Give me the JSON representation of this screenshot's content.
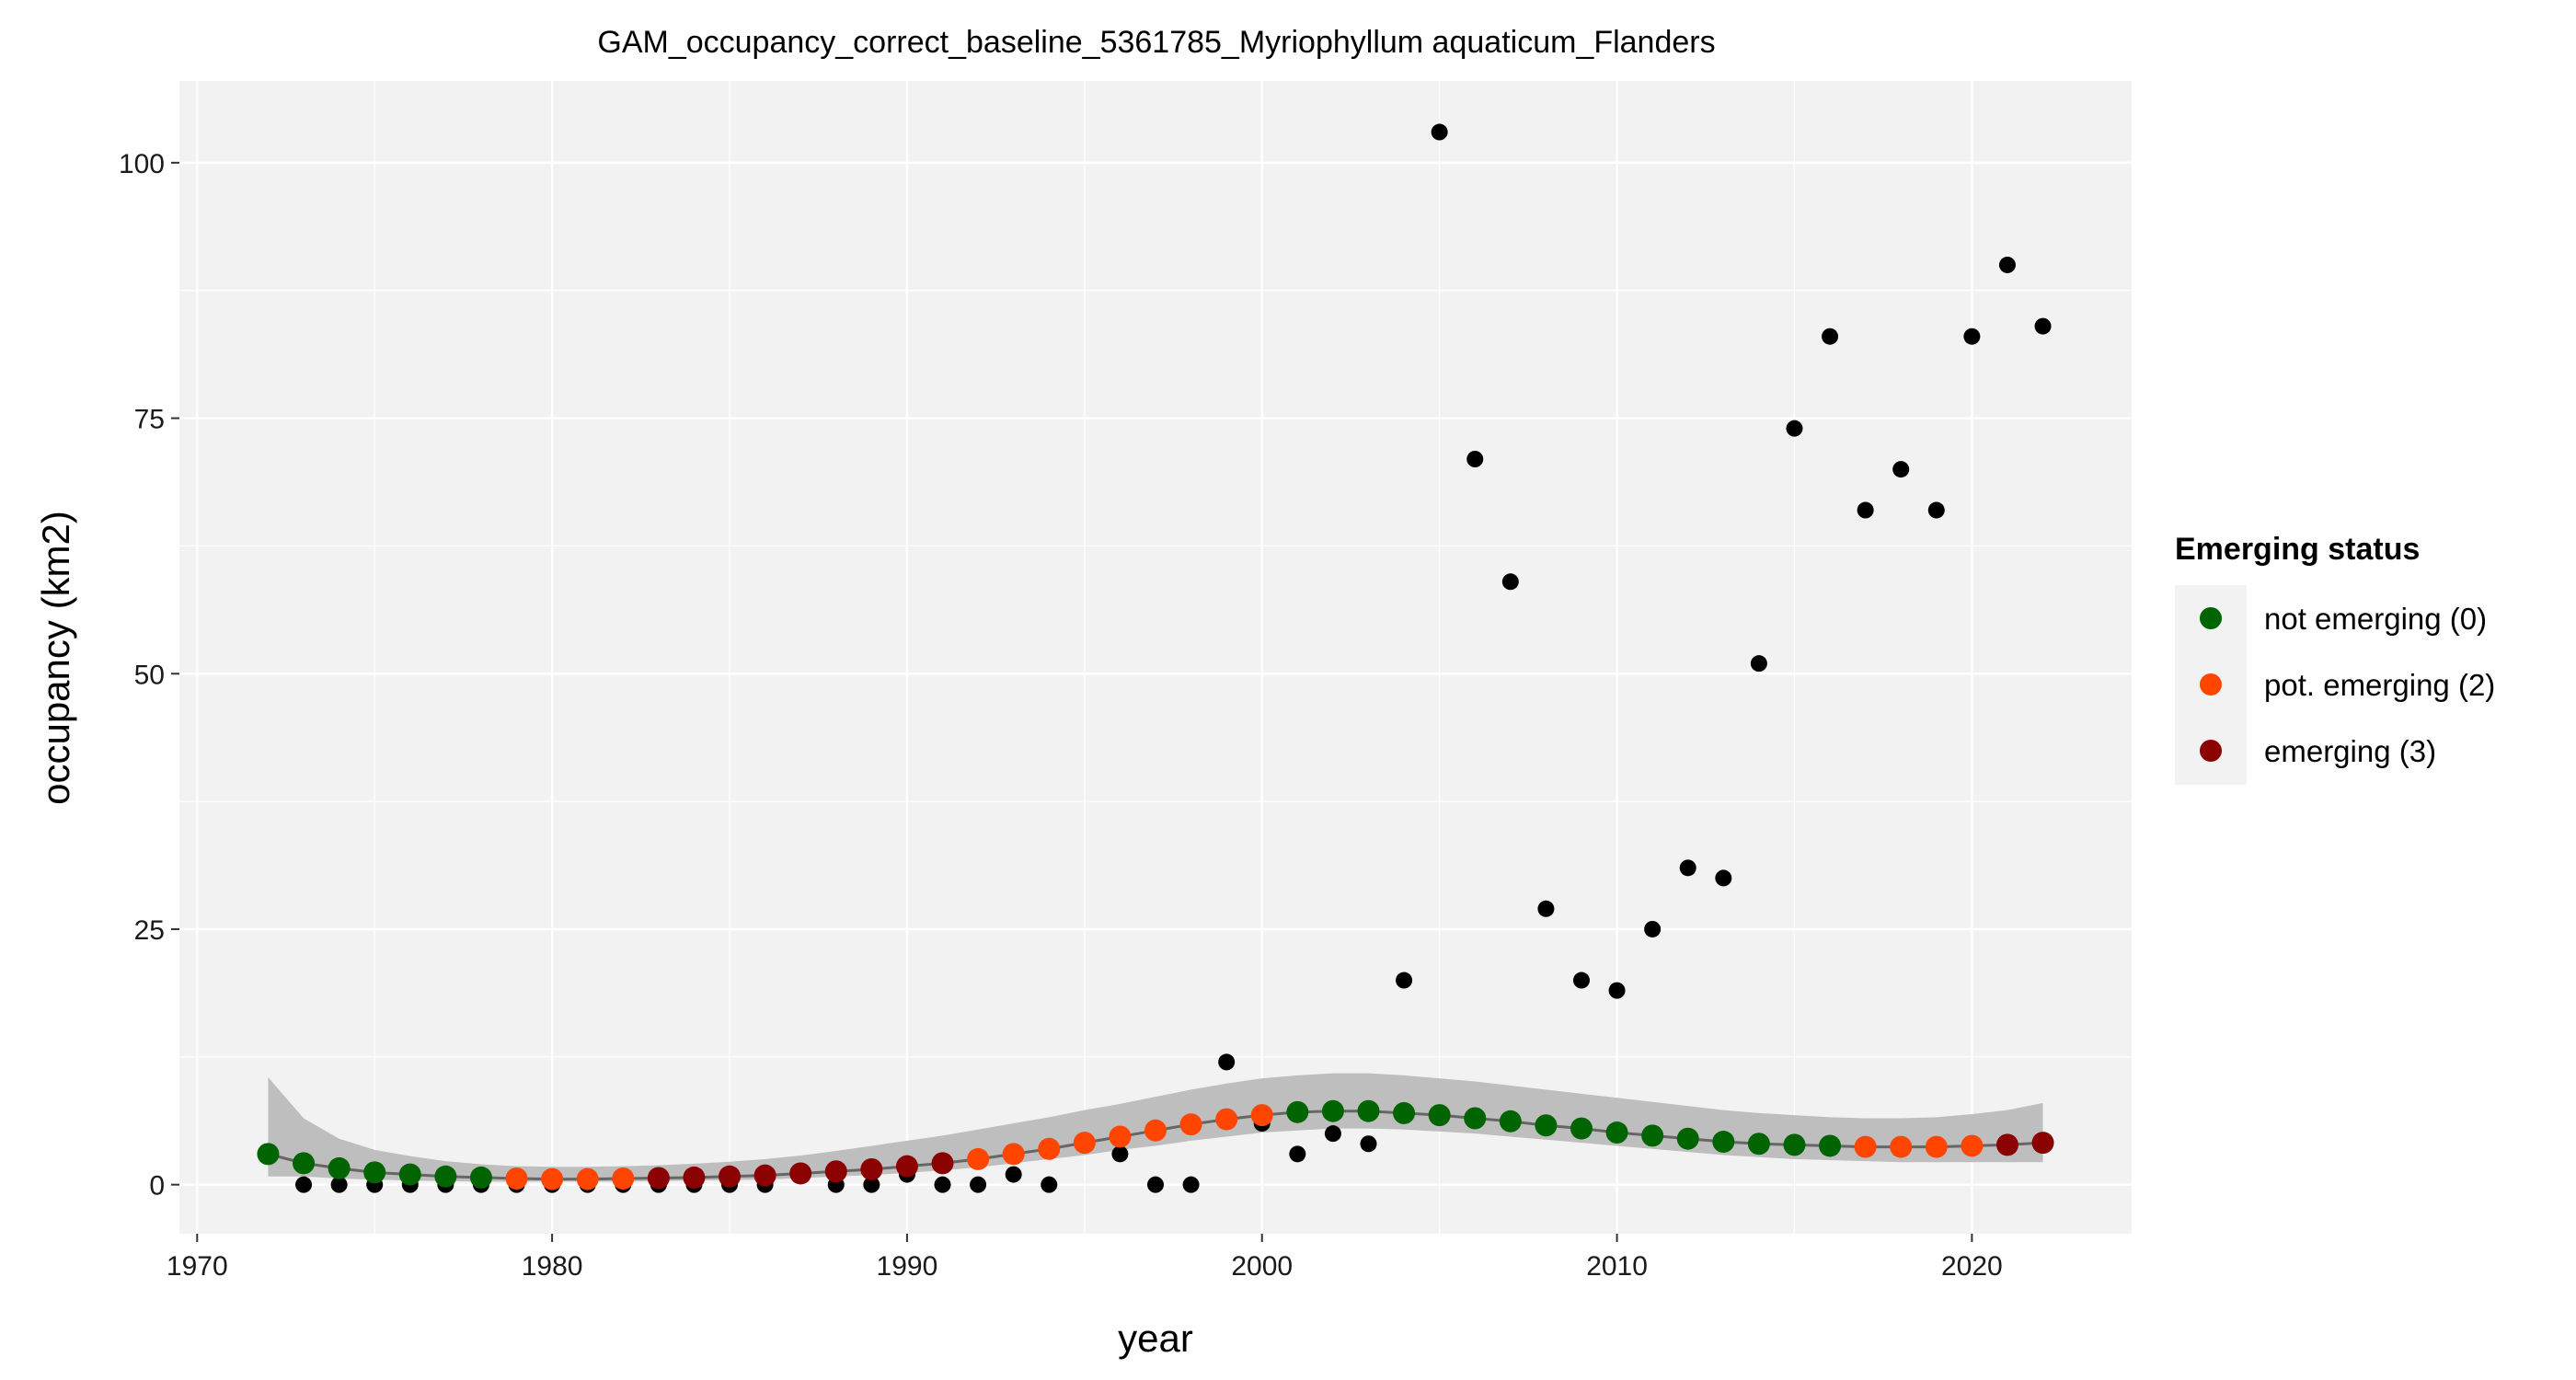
{
  "colors": {
    "panel_background": "#F2F2F2",
    "grid_line": "#FFFFFF",
    "ribbon": "#BEBEBE",
    "smooth_line": "#666666",
    "observed_point": "#000000",
    "not_emerging": "#006400",
    "pot_emerging": "#FF4500",
    "emerging": "#8B0000"
  },
  "chart_data": {
    "type": "scatter",
    "title": "GAM_occupancy_correct_baseline_5361785_Myriophyllum aquaticum_Flanders",
    "xlabel": "year",
    "ylabel": "occupancy (km2)",
    "xlim": [
      1969.5,
      2024.5
    ],
    "ylim": [
      -4.8,
      108
    ],
    "x_ticks": [
      1970,
      1980,
      1990,
      2000,
      2010,
      2020
    ],
    "x_tick_labels": [
      "1970",
      "1980",
      "1990",
      "2000",
      "2010",
      "2020"
    ],
    "y_ticks": [
      0,
      25,
      50,
      75,
      100
    ],
    "y_tick_labels": [
      "0",
      "25",
      "50",
      "75",
      "100"
    ],
    "grid": true,
    "legend": {
      "title": "Emerging status",
      "placement": "right",
      "entries": [
        {
          "label": "not emerging (0)",
          "color": "#006400"
        },
        {
          "label": "pot. emerging (2)",
          "color": "#FF4500"
        },
        {
          "label": "emerging (3)",
          "color": "#8B0000"
        }
      ]
    },
    "observed": {
      "x": [
        1973,
        1974,
        1975,
        1976,
        1977,
        1978,
        1979,
        1980,
        1981,
        1982,
        1983,
        1984,
        1985,
        1986,
        1987,
        1988,
        1989,
        1990,
        1991,
        1992,
        1993,
        1994,
        1996,
        1997,
        1998,
        1999,
        2000,
        2001,
        2002,
        2003,
        2004,
        2005,
        2006,
        2007,
        2008,
        2009,
        2010,
        2011,
        2012,
        2013,
        2014,
        2015,
        2016,
        2017,
        2018,
        2019,
        2020,
        2021,
        2022
      ],
      "y": [
        0,
        0,
        0,
        0,
        0,
        0,
        0,
        0,
        0,
        0,
        0,
        0,
        0,
        0,
        1,
        0,
        0,
        1,
        0,
        0,
        1,
        0,
        3,
        0,
        0,
        12,
        6,
        3,
        5,
        4,
        20,
        103,
        71,
        59,
        27,
        20,
        19,
        25,
        31,
        30,
        51,
        74,
        83,
        66,
        70,
        66,
        83,
        90,
        84
      ]
    },
    "fitted": {
      "x": [
        1972,
        1973,
        1974,
        1975,
        1976,
        1977,
        1978,
        1979,
        1980,
        1981,
        1982,
        1983,
        1984,
        1985,
        1986,
        1987,
        1988,
        1989,
        1990,
        1991,
        1992,
        1993,
        1994,
        1995,
        1996,
        1997,
        1998,
        1999,
        2000,
        2001,
        2002,
        2003,
        2004,
        2005,
        2006,
        2007,
        2008,
        2009,
        2010,
        2011,
        2012,
        2013,
        2014,
        2015,
        2016,
        2017,
        2018,
        2019,
        2020,
        2021,
        2022
      ],
      "y": [
        3.0,
        2.1,
        1.6,
        1.2,
        1.0,
        0.8,
        0.7,
        0.6,
        0.55,
        0.55,
        0.6,
        0.65,
        0.7,
        0.8,
        0.9,
        1.1,
        1.3,
        1.5,
        1.8,
        2.1,
        2.5,
        3.0,
        3.5,
        4.1,
        4.7,
        5.3,
        5.9,
        6.4,
        6.8,
        7.1,
        7.2,
        7.2,
        7.0,
        6.8,
        6.5,
        6.2,
        5.8,
        5.5,
        5.1,
        4.8,
        4.5,
        4.2,
        4.0,
        3.9,
        3.8,
        3.7,
        3.7,
        3.7,
        3.8,
        3.9,
        4.1
      ],
      "lower": [
        0.8,
        0.8,
        0.6,
        0.5,
        0.4,
        0.35,
        0.3,
        0.3,
        0.3,
        0.3,
        0.3,
        0.35,
        0.4,
        0.45,
        0.5,
        0.65,
        0.8,
        0.95,
        1.15,
        1.4,
        1.7,
        2.1,
        2.5,
        2.9,
        3.4,
        3.8,
        4.3,
        4.7,
        5.1,
        5.3,
        5.5,
        5.5,
        5.4,
        5.2,
        5.0,
        4.7,
        4.4,
        4.1,
        3.8,
        3.5,
        3.2,
        2.9,
        2.7,
        2.5,
        2.4,
        2.3,
        2.2,
        2.2,
        2.2,
        2.2,
        2.2
      ],
      "upper": [
        10.5,
        6.5,
        4.5,
        3.4,
        2.8,
        2.3,
        2.0,
        1.8,
        1.75,
        1.75,
        1.8,
        1.9,
        2.05,
        2.25,
        2.5,
        2.85,
        3.3,
        3.8,
        4.3,
        4.8,
        5.4,
        6.0,
        6.6,
        7.3,
        7.9,
        8.6,
        9.3,
        9.9,
        10.4,
        10.7,
        10.9,
        10.9,
        10.7,
        10.4,
        10.1,
        9.7,
        9.3,
        8.9,
        8.5,
        8.1,
        7.7,
        7.3,
        7.0,
        6.8,
        6.6,
        6.5,
        6.5,
        6.6,
        6.9,
        7.3,
        8.0
      ],
      "status": [
        0,
        0,
        0,
        0,
        0,
        0,
        0,
        2,
        2,
        2,
        2,
        3,
        3,
        3,
        3,
        3,
        3,
        3,
        3,
        3,
        2,
        2,
        2,
        2,
        2,
        2,
        2,
        2,
        2,
        0,
        0,
        0,
        0,
        0,
        0,
        0,
        0,
        0,
        0,
        0,
        0,
        0,
        0,
        0,
        0,
        2,
        2,
        2,
        2,
        3,
        3
      ]
    }
  }
}
